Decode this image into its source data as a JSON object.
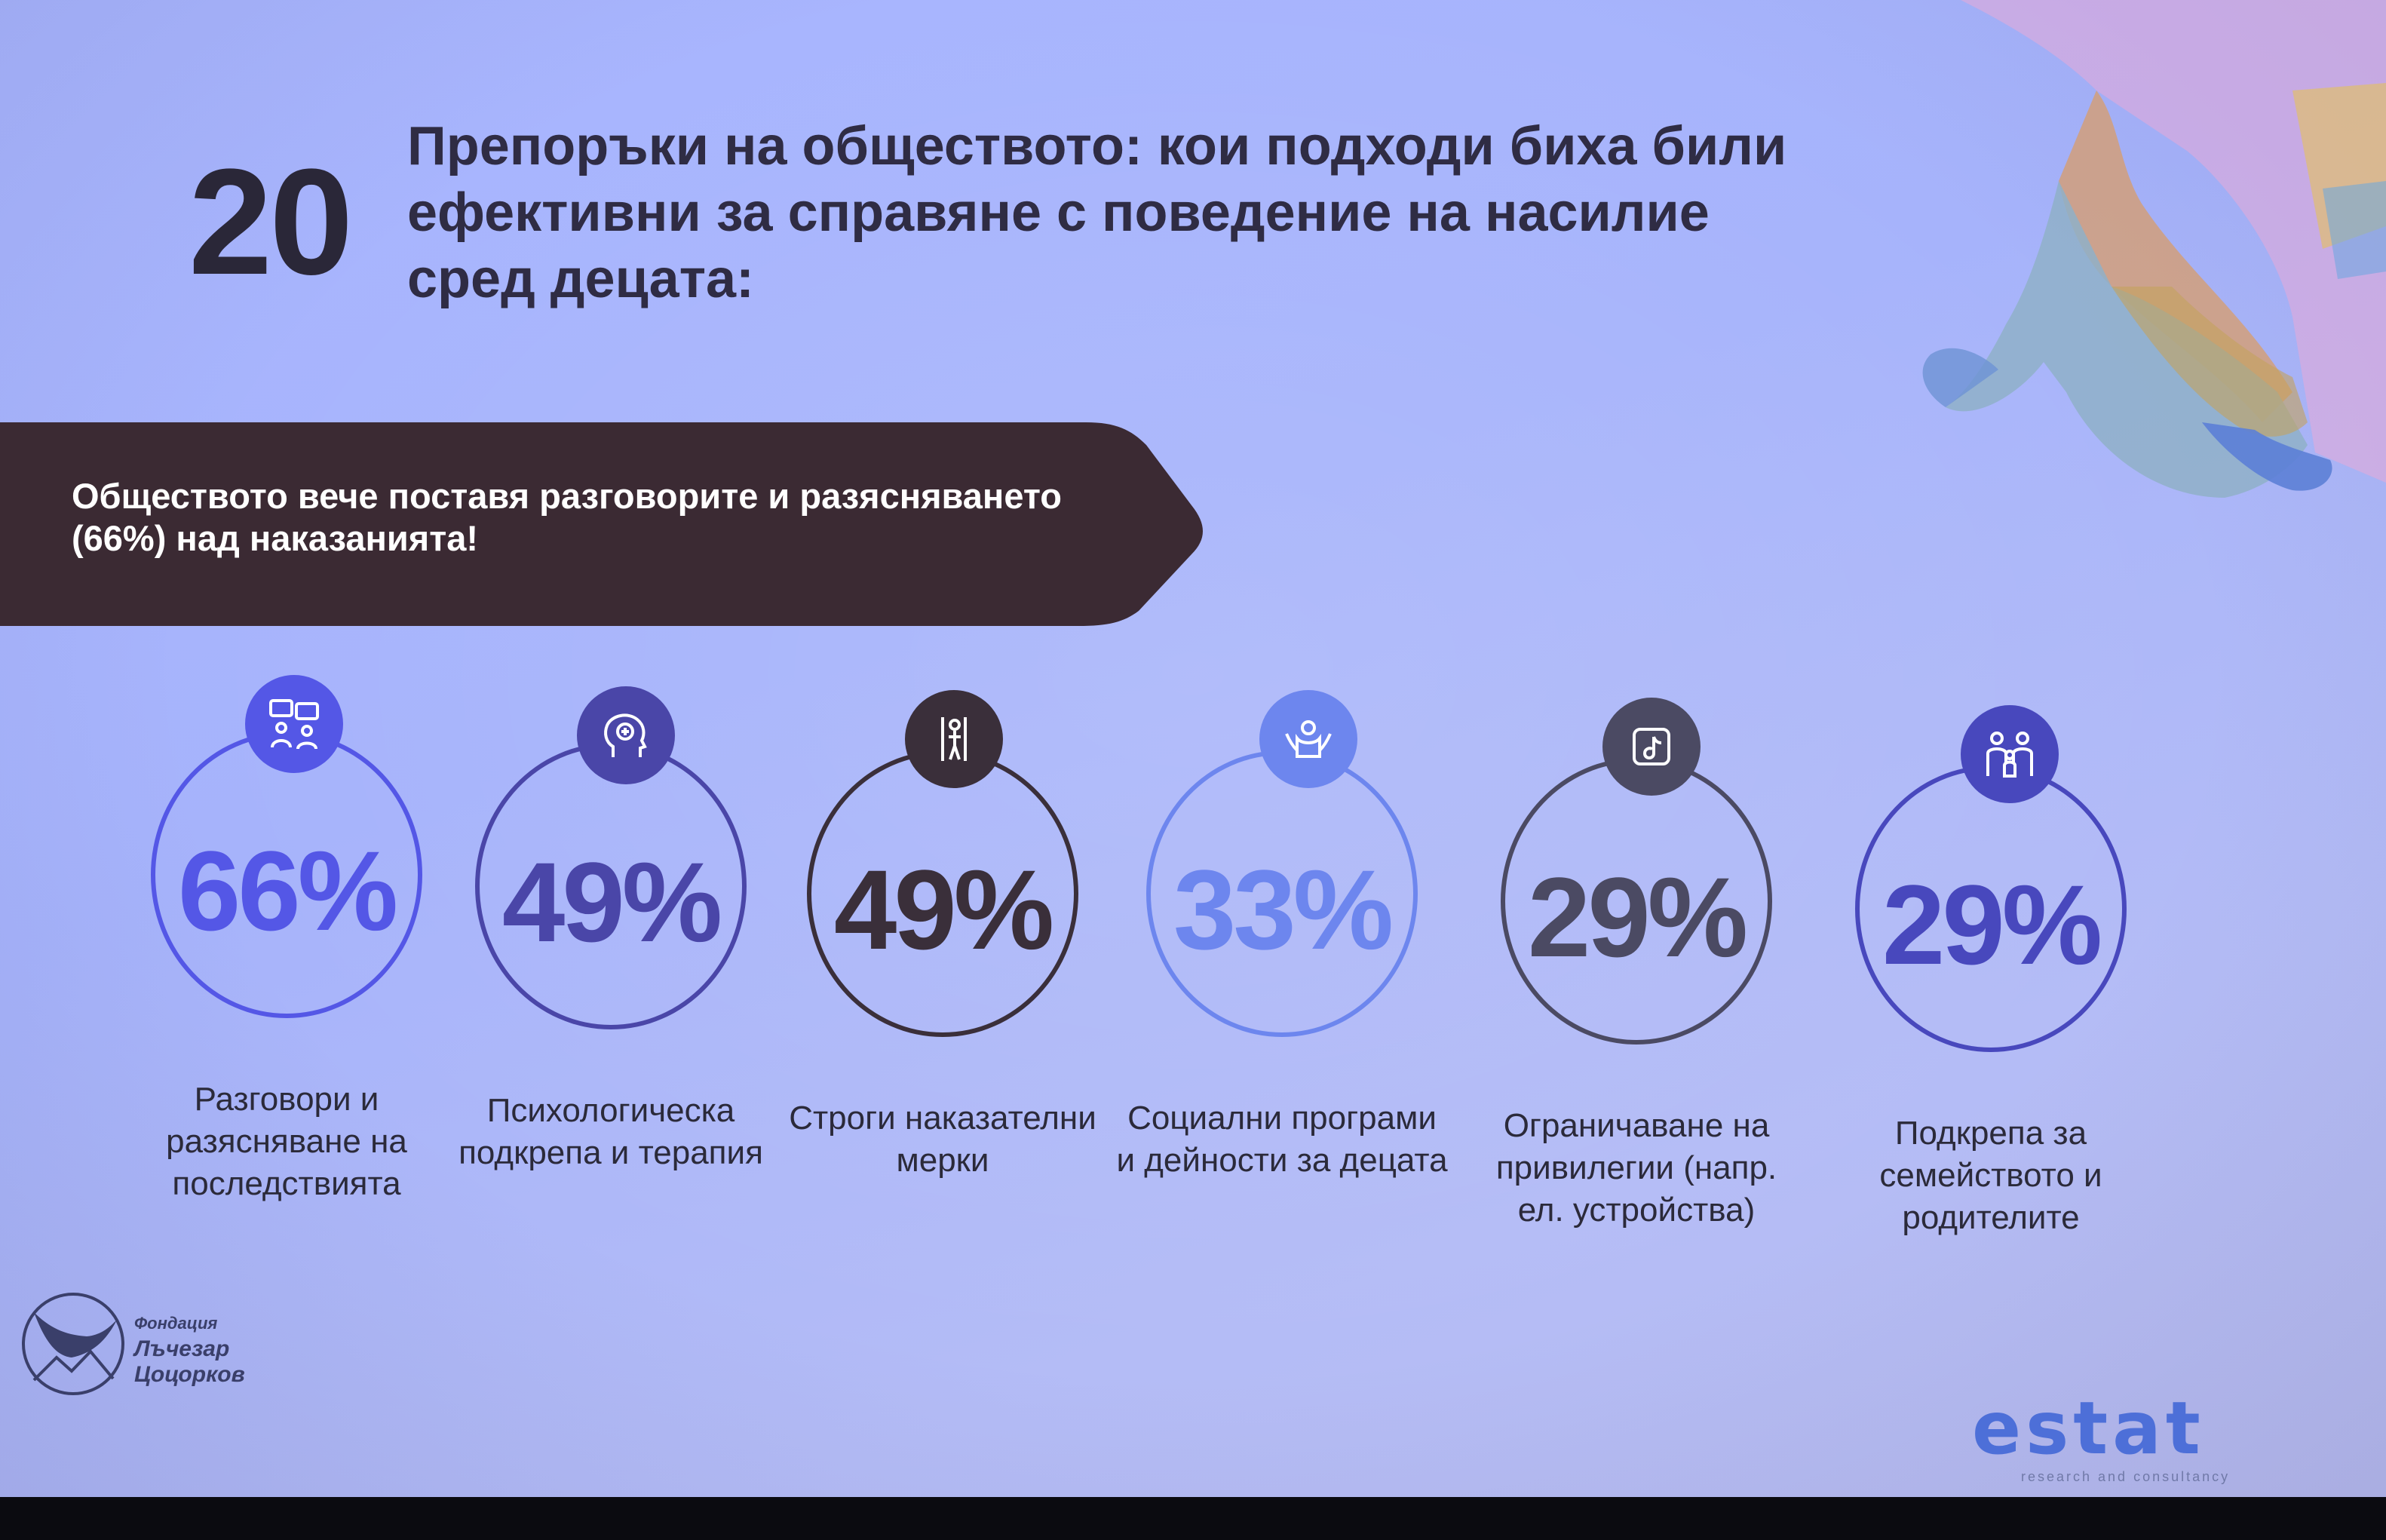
{
  "slide": {
    "number": "20",
    "title": "Препоръки на обществото: кои подходи биха били ефективни за справяне с поведение на насилие сред децата:"
  },
  "banner": {
    "text": "Обществото вече поставя разговорите и разясняването (66%) над наказанията!"
  },
  "stats": [
    {
      "value": "66%",
      "label": "Разговори и разясняване на последствията",
      "icon": "conversation-icon",
      "color": "#5457e6"
    },
    {
      "value": "49%",
      "label": "Психологическа подкрепа и терапия",
      "icon": "psychology-head-icon",
      "color": "#4a46a8"
    },
    {
      "value": "49%",
      "label": "Строги наказателни мерки",
      "icon": "prisoner-bars-icon",
      "color": "#3a2f3a"
    },
    {
      "value": "33%",
      "label": "Социални програми и дейности за децата",
      "icon": "child-care-icon",
      "color": "#6d86ee"
    },
    {
      "value": "29%",
      "label": "Ограничаване на привилегии (напр. ел. устройства)",
      "icon": "tiktok-device-icon",
      "color": "#4b4a63"
    },
    {
      "value": "29%",
      "label": "Подкрепа за семейството и родителите",
      "icon": "family-icon",
      "color": "#4848bd"
    }
  ],
  "logos": {
    "foundation": {
      "line1": "Фондация",
      "line2": "Лъчезар",
      "line3": "Цоцорков"
    },
    "estat": {
      "word": "estat",
      "tagline": "research and consultancy"
    }
  },
  "colors": {
    "banner": "#3b2a33",
    "title": "#2f2c44"
  }
}
